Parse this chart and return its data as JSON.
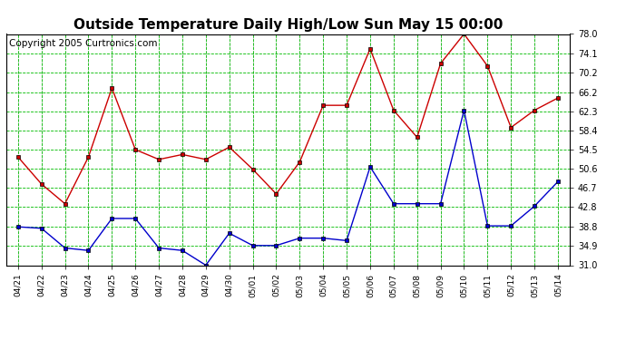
{
  "title": "Outside Temperature Daily High/Low Sun May 15 00:00",
  "copyright": "Copyright 2005 Curtronics.com",
  "x_labels": [
    "04/21",
    "04/22",
    "04/23",
    "04/24",
    "04/25",
    "04/26",
    "04/27",
    "04/28",
    "04/29",
    "04/30",
    "05/01",
    "05/02",
    "05/03",
    "05/04",
    "05/05",
    "05/06",
    "05/07",
    "05/08",
    "05/09",
    "05/10",
    "05/11",
    "05/12",
    "05/13",
    "05/14"
  ],
  "high_temps": [
    53.0,
    47.5,
    43.5,
    53.0,
    67.0,
    54.5,
    52.5,
    53.5,
    52.5,
    55.0,
    50.5,
    45.5,
    52.0,
    63.5,
    63.5,
    75.0,
    62.5,
    57.0,
    72.0,
    78.0,
    71.5,
    59.0,
    62.5,
    65.0
  ],
  "low_temps": [
    38.8,
    38.5,
    34.5,
    34.0,
    40.5,
    40.5,
    34.5,
    34.0,
    31.0,
    37.5,
    35.0,
    35.0,
    36.5,
    36.5,
    36.0,
    51.0,
    43.5,
    43.5,
    43.5,
    62.5,
    39.0,
    39.0,
    43.0,
    48.0
  ],
  "high_color": "#cc0000",
  "low_color": "#0000cc",
  "bg_color": "#ffffff",
  "plot_bg_color": "#ffffff",
  "grid_color": "#00bb00",
  "ylim": [
    31.0,
    78.0
  ],
  "yticks": [
    31.0,
    34.9,
    38.8,
    42.8,
    46.7,
    50.6,
    54.5,
    58.4,
    62.3,
    66.2,
    70.2,
    74.1,
    78.0
  ],
  "title_fontsize": 11,
  "copyright_fontsize": 7.5
}
